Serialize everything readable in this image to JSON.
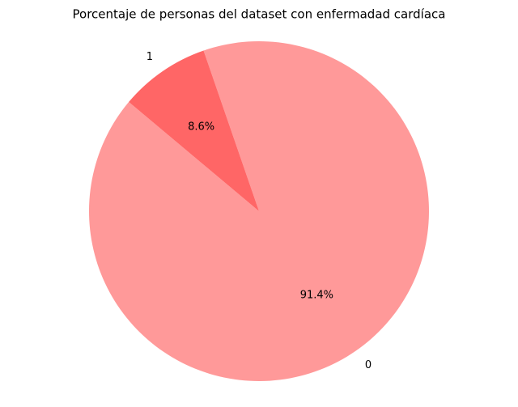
{
  "chart_data": {
    "type": "pie",
    "title": "Porcentaje de personas del dataset con enfermadad cardíaca",
    "categories": [
      "0",
      "1"
    ],
    "values": [
      91.4,
      8.6
    ],
    "value_labels": [
      "91.4%",
      "8.6%"
    ],
    "colors": [
      "#ff9999",
      "#ff6666"
    ],
    "startangle": 140
  }
}
